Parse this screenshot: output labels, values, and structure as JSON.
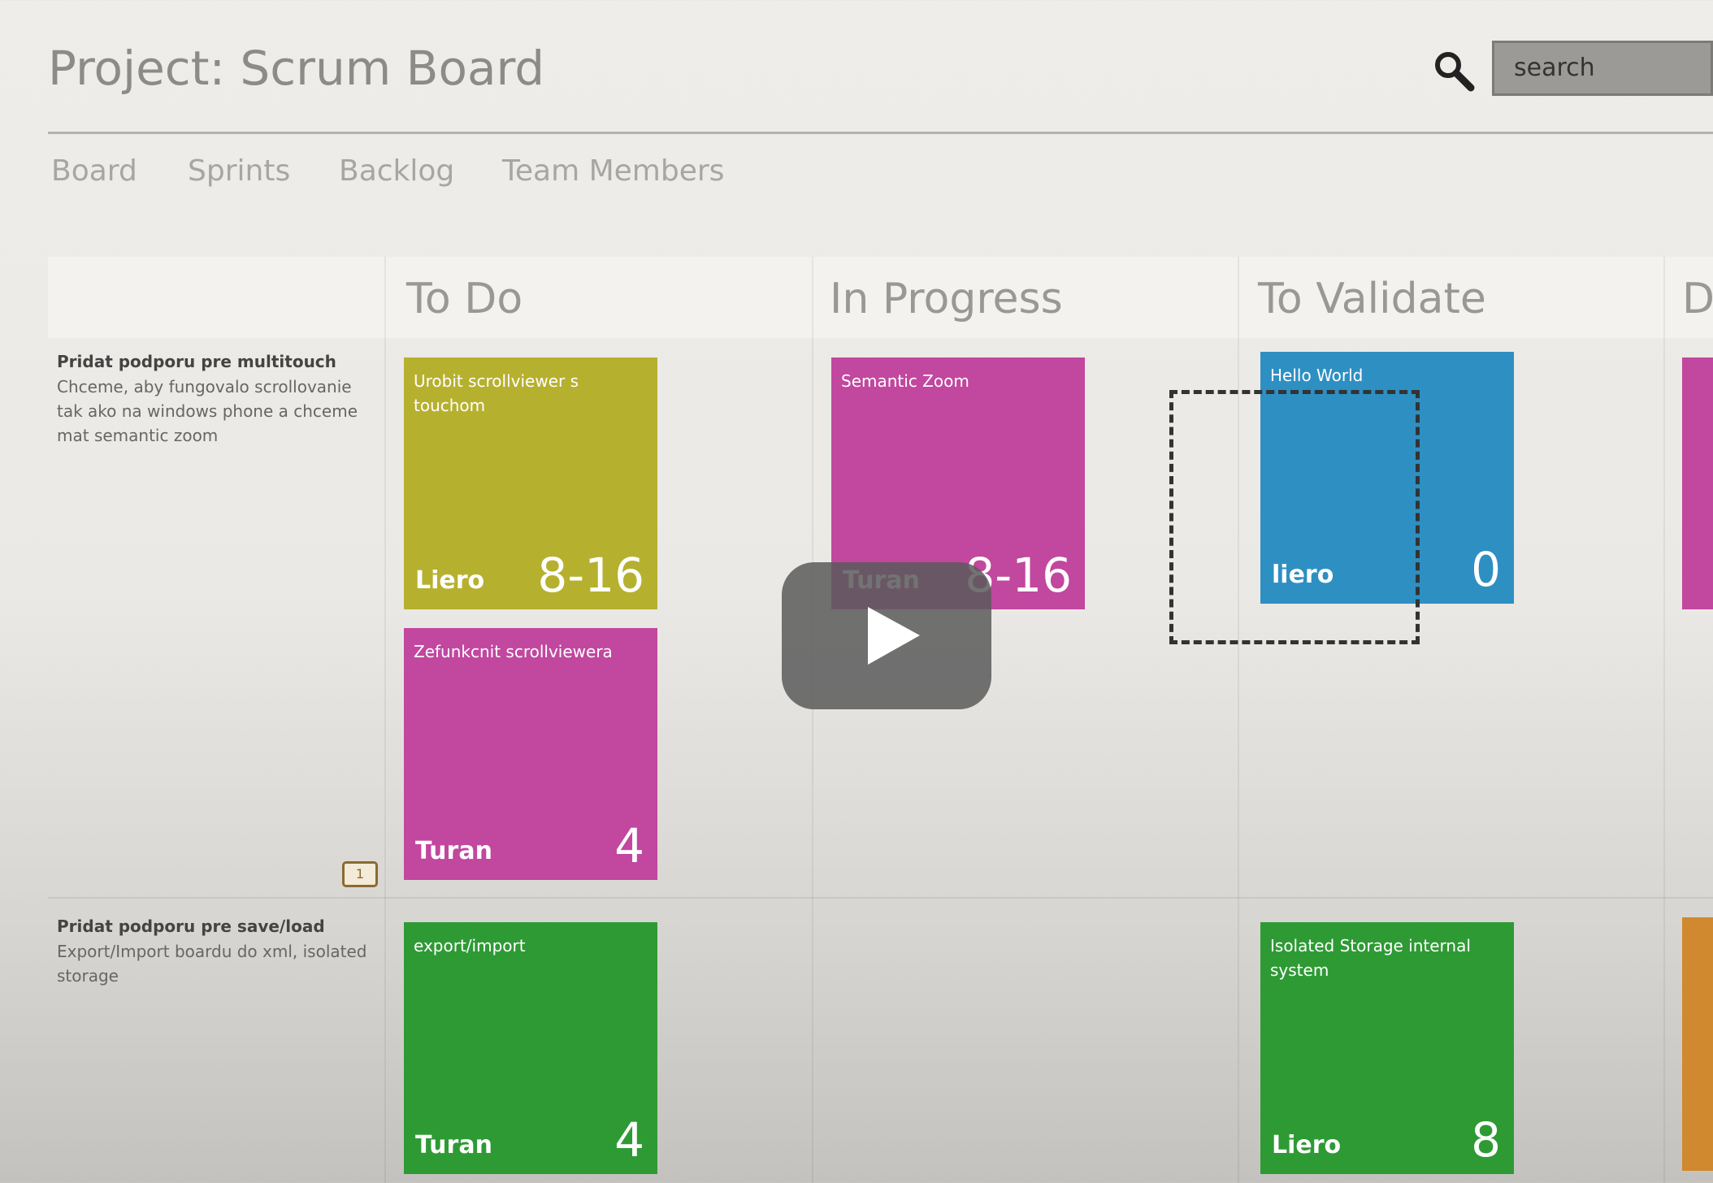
{
  "header": {
    "title": "Project: Scrum Board",
    "search_placeholder": "search"
  },
  "nav": [
    "Board",
    "Sprints",
    "Backlog",
    "Team Members"
  ],
  "columns": [
    "To Do",
    "In Progress",
    "To Validate",
    "Done"
  ],
  "rows": [
    {
      "title": "Pridat podporu pre multitouch",
      "description": "Chceme, aby fungovalo scrollovanie tak ako na windows phone a chceme mat semantic zoom",
      "comment_count": "1",
      "cards": [
        {
          "column": 0,
          "slot": 0,
          "title": "Urobit scrollviewer s touchom",
          "owner": "Liero",
          "estimate": "8-16",
          "color": "#b6b02f"
        },
        {
          "column": 0,
          "slot": 1,
          "title": "Zefunkcnit scrollviewera",
          "owner": "Turan",
          "estimate": "4",
          "color": "#c1479f"
        },
        {
          "column": 1,
          "slot": 0,
          "title": "Semantic Zoom",
          "owner": "Turan",
          "estimate": "8-16",
          "color": "#c1479f"
        },
        {
          "column": 2,
          "slot": 0,
          "title": "Hello World",
          "owner": "liero",
          "estimate": "0",
          "color": "#2e8fc3"
        }
      ]
    },
    {
      "title": "Pridat podporu pre save/load",
      "description": "Export/Import boardu do xml, isolated storage",
      "cards": [
        {
          "column": 0,
          "slot": 0,
          "title": "export/import",
          "owner": "Turan",
          "estimate": "4",
          "color": "#2e9a34"
        },
        {
          "column": 2,
          "slot": 0,
          "title": "Isolated Storage internal system",
          "owner": "Liero",
          "estimate": "8",
          "color": "#2e9a34"
        }
      ]
    }
  ]
}
